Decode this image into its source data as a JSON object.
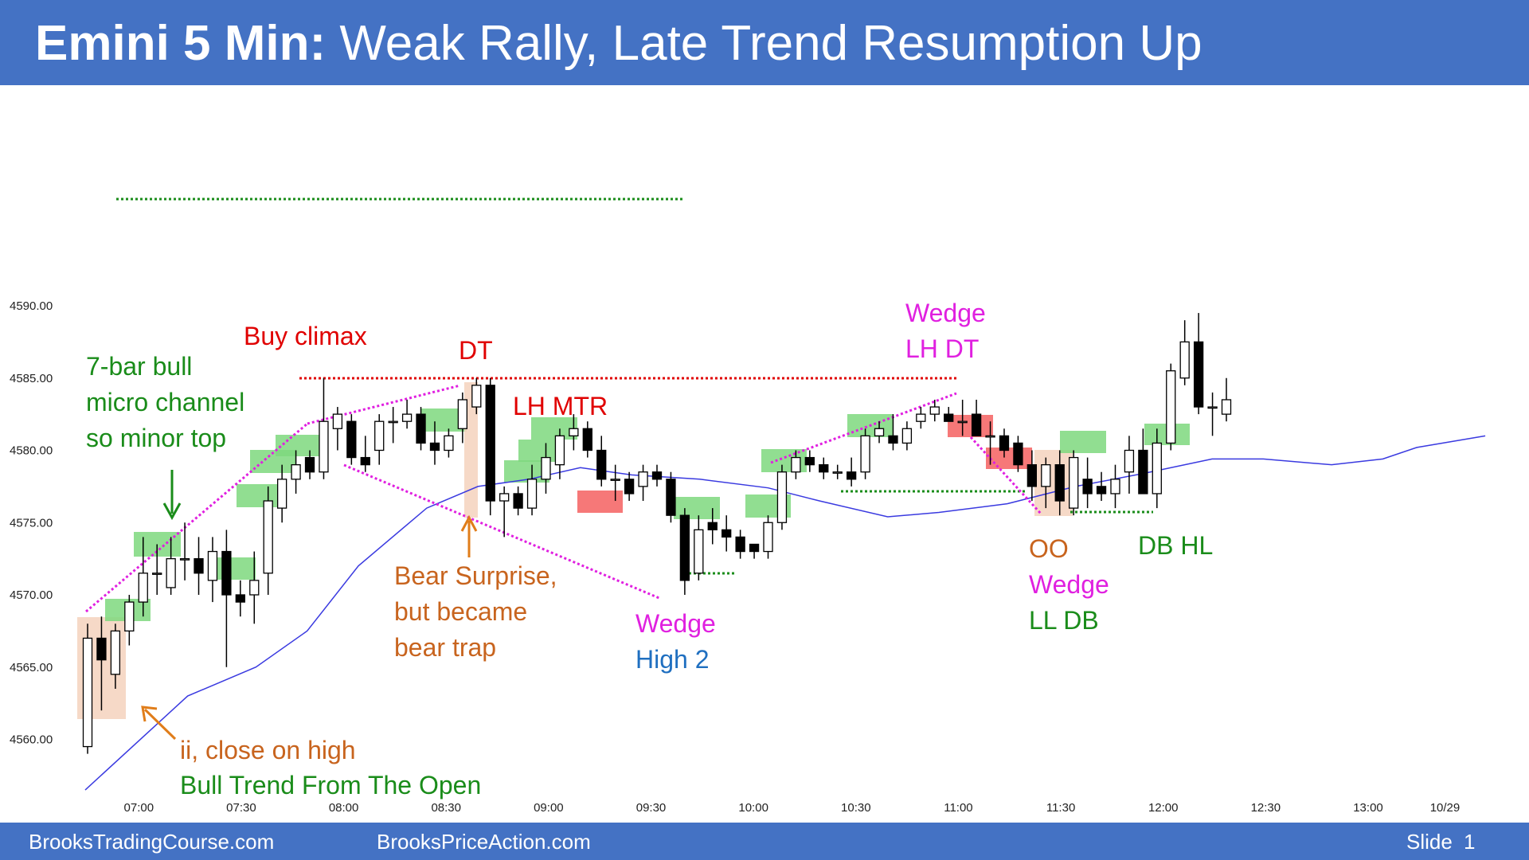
{
  "title": {
    "bold": "Emini 5 Min:",
    "rest": "Weak Rally, Late Trend Resumption Up"
  },
  "footer": {
    "left": "BrooksTradingCourse.com",
    "center": "BrooksPriceAction.com",
    "slide_label": "Slide",
    "slide_number": "1"
  },
  "colors": {
    "brand_blue": "#4472c4",
    "bull_highlight": "#7ed87e",
    "bear_highlight": "#f46060",
    "outside_highlight": "#f5d2bd",
    "ema": "#3a3ae0",
    "trendline_magenta": "#e020e0",
    "resistance_red": "#e00000",
    "support_green": "#1a8c1a"
  },
  "annotations": {
    "micro_channel": [
      "7-bar bull",
      "micro channel",
      "so minor top"
    ],
    "buy_climax": "Buy climax",
    "dt": "DT",
    "lh_mtr": "LH MTR",
    "bear_surprise": [
      "Bear Surprise,",
      "but became",
      "bear trap"
    ],
    "wedge_high2": [
      "Wedge",
      "High 2"
    ],
    "wedge_lh_dt": [
      "Wedge",
      "LH DT"
    ],
    "oo_wedge": [
      "OO",
      "Wedge",
      "LL DB"
    ],
    "db_hl": "DB HL",
    "ii_close": "ii, close on high",
    "bull_trend": "Bull Trend From The Open"
  },
  "chart_data": {
    "type": "candlestick",
    "y_axis": {
      "min": 4555,
      "max": 4592,
      "ticks": [
        4560.0,
        4565.0,
        4570.0,
        4575.0,
        4580.0,
        4585.0,
        4590.0
      ],
      "tick_labels": [
        "4560.00",
        "4565.00",
        "4570.00",
        "4575.00",
        "4580.00",
        "4585.00",
        "4590.00"
      ]
    },
    "x_axis": {
      "tick_bars": [
        3,
        9,
        15,
        21,
        27,
        33,
        39,
        45,
        51,
        57,
        63,
        69,
        75
      ],
      "tick_labels": [
        "07:00",
        "07:30",
        "08:00",
        "08:30",
        "09:00",
        "09:30",
        "10:00",
        "10:30",
        "11:00",
        "11:30",
        "12:00",
        "12:30",
        "13:00"
      ],
      "end_label": "10/29"
    },
    "bar_count": 80,
    "candles": [
      {
        "o": 4559.5,
        "h": 4568.0,
        "l": 4559.0,
        "c": 4567.0
      },
      {
        "o": 4567.0,
        "h": 4568.5,
        "l": 4562.0,
        "c": 4565.5
      },
      {
        "o": 4564.5,
        "h": 4568.0,
        "l": 4563.5,
        "c": 4567.5
      },
      {
        "o": 4567.5,
        "h": 4570.0,
        "l": 4566.5,
        "c": 4569.5
      },
      {
        "o": 4569.5,
        "h": 4574.0,
        "l": 4568.5,
        "c": 4571.5
      },
      {
        "o": 4571.5,
        "h": 4573.5,
        "l": 4570.0,
        "c": 4571.5
      },
      {
        "o": 4570.5,
        "h": 4574.0,
        "l": 4570.0,
        "c": 4572.5
      },
      {
        "o": 4572.5,
        "h": 4575.0,
        "l": 4571.0,
        "c": 4572.5
      },
      {
        "o": 4572.5,
        "h": 4574.0,
        "l": 4570.0,
        "c": 4571.5
      },
      {
        "o": 4571.0,
        "h": 4574.0,
        "l": 4569.5,
        "c": 4573.0
      },
      {
        "o": 4573.0,
        "h": 4574.5,
        "l": 4565.0,
        "c": 4570.0
      },
      {
        "o": 4570.0,
        "h": 4571.0,
        "l": 4568.5,
        "c": 4569.5
      },
      {
        "o": 4570.0,
        "h": 4573.0,
        "l": 4568.0,
        "c": 4571.0
      },
      {
        "o": 4571.5,
        "h": 4577.5,
        "l": 4570.0,
        "c": 4576.5
      },
      {
        "o": 4576.0,
        "h": 4579.0,
        "l": 4575.0,
        "c": 4578.0
      },
      {
        "o": 4578.0,
        "h": 4580.0,
        "l": 4577.0,
        "c": 4579.0
      },
      {
        "o": 4579.5,
        "h": 4580.0,
        "l": 4578.0,
        "c": 4578.5
      },
      {
        "o": 4578.5,
        "h": 4585.0,
        "l": 4578.0,
        "c": 4582.0
      },
      {
        "o": 4581.5,
        "h": 4583.0,
        "l": 4580.0,
        "c": 4582.5
      },
      {
        "o": 4582.0,
        "h": 4582.5,
        "l": 4579.0,
        "c": 4579.5
      },
      {
        "o": 4579.5,
        "h": 4581.0,
        "l": 4578.5,
        "c": 4579.0
      },
      {
        "o": 4580.0,
        "h": 4582.5,
        "l": 4579.0,
        "c": 4582.0
      },
      {
        "o": 4582.0,
        "h": 4583.0,
        "l": 4580.5,
        "c": 4582.0
      },
      {
        "o": 4582.0,
        "h": 4583.5,
        "l": 4581.5,
        "c": 4582.5
      },
      {
        "o": 4582.5,
        "h": 4583.0,
        "l": 4580.0,
        "c": 4580.5
      },
      {
        "o": 4580.5,
        "h": 4582.0,
        "l": 4579.0,
        "c": 4580.0
      },
      {
        "o": 4580.0,
        "h": 4581.5,
        "l": 4579.5,
        "c": 4581.0
      },
      {
        "o": 4581.5,
        "h": 4584.0,
        "l": 4580.5,
        "c": 4583.5
      },
      {
        "o": 4583.0,
        "h": 4585.0,
        "l": 4582.5,
        "c": 4584.5
      },
      {
        "o": 4584.5,
        "h": 4585.0,
        "l": 4575.5,
        "c": 4576.5
      },
      {
        "o": 4576.5,
        "h": 4577.5,
        "l": 4574.0,
        "c": 4577.0
      },
      {
        "o": 4577.0,
        "h": 4577.5,
        "l": 4575.5,
        "c": 4576.0
      },
      {
        "o": 4576.0,
        "h": 4579.0,
        "l": 4575.5,
        "c": 4578.0
      },
      {
        "o": 4578.0,
        "h": 4580.5,
        "l": 4577.0,
        "c": 4579.5
      },
      {
        "o": 4579.0,
        "h": 4581.5,
        "l": 4578.0,
        "c": 4581.0
      },
      {
        "o": 4581.0,
        "h": 4582.5,
        "l": 4580.0,
        "c": 4581.5
      },
      {
        "o": 4581.5,
        "h": 4582.0,
        "l": 4579.5,
        "c": 4580.0
      },
      {
        "o": 4580.0,
        "h": 4581.0,
        "l": 4577.5,
        "c": 4578.0
      },
      {
        "o": 4578.0,
        "h": 4579.0,
        "l": 4576.5,
        "c": 4578.0
      },
      {
        "o": 4578.0,
        "h": 4578.5,
        "l": 4576.5,
        "c": 4577.0
      },
      {
        "o": 4577.5,
        "h": 4579.0,
        "l": 4576.5,
        "c": 4578.5
      },
      {
        "o": 4578.5,
        "h": 4579.0,
        "l": 4577.5,
        "c": 4578.0
      },
      {
        "o": 4578.0,
        "h": 4578.5,
        "l": 4575.0,
        "c": 4575.5
      },
      {
        "o": 4575.5,
        "h": 4576.0,
        "l": 4570.0,
        "c": 4571.0
      },
      {
        "o": 4571.5,
        "h": 4575.5,
        "l": 4571.0,
        "c": 4574.5
      },
      {
        "o": 4575.0,
        "h": 4576.0,
        "l": 4573.5,
        "c": 4574.5
      },
      {
        "o": 4574.5,
        "h": 4575.5,
        "l": 4573.0,
        "c": 4574.0
      },
      {
        "o": 4574.0,
        "h": 4574.5,
        "l": 4572.5,
        "c": 4573.0
      },
      {
        "o": 4573.5,
        "h": 4573.5,
        "l": 4572.5,
        "c": 4573.0
      },
      {
        "o": 4573.0,
        "h": 4575.5,
        "l": 4572.5,
        "c": 4575.0
      },
      {
        "o": 4575.0,
        "h": 4579.0,
        "l": 4574.5,
        "c": 4578.5
      },
      {
        "o": 4578.5,
        "h": 4580.0,
        "l": 4578.0,
        "c": 4579.5
      },
      {
        "o": 4579.5,
        "h": 4580.0,
        "l": 4578.5,
        "c": 4579.0
      },
      {
        "o": 4579.0,
        "h": 4579.5,
        "l": 4578.0,
        "c": 4578.5
      },
      {
        "o": 4578.5,
        "h": 4579.0,
        "l": 4578.0,
        "c": 4578.5
      },
      {
        "o": 4578.5,
        "h": 4579.5,
        "l": 4577.5,
        "c": 4578.0
      },
      {
        "o": 4578.5,
        "h": 4581.5,
        "l": 4578.0,
        "c": 4581.0
      },
      {
        "o": 4581.0,
        "h": 4582.0,
        "l": 4580.5,
        "c": 4581.5
      },
      {
        "o": 4581.0,
        "h": 4582.5,
        "l": 4580.0,
        "c": 4580.5
      },
      {
        "o": 4580.5,
        "h": 4582.0,
        "l": 4580.0,
        "c": 4581.5
      },
      {
        "o": 4582.0,
        "h": 4583.0,
        "l": 4581.5,
        "c": 4582.5
      },
      {
        "o": 4582.5,
        "h": 4583.5,
        "l": 4582.0,
        "c": 4583.0
      },
      {
        "o": 4582.5,
        "h": 4583.0,
        "l": 4582.0,
        "c": 4582.0
      },
      {
        "o": 4582.0,
        "h": 4583.5,
        "l": 4581.0,
        "c": 4582.0
      },
      {
        "o": 4582.5,
        "h": 4583.5,
        "l": 4581.0,
        "c": 4581.0
      },
      {
        "o": 4581.0,
        "h": 4582.0,
        "l": 4579.0,
        "c": 4581.0
      },
      {
        "o": 4581.0,
        "h": 4581.5,
        "l": 4579.5,
        "c": 4580.0
      },
      {
        "o": 4580.5,
        "h": 4581.0,
        "l": 4578.5,
        "c": 4579.0
      },
      {
        "o": 4579.0,
        "h": 4580.0,
        "l": 4576.5,
        "c": 4577.5
      },
      {
        "o": 4577.5,
        "h": 4579.5,
        "l": 4576.0,
        "c": 4579.0
      },
      {
        "o": 4579.0,
        "h": 4580.0,
        "l": 4575.5,
        "c": 4576.5
      },
      {
        "o": 4576.0,
        "h": 4580.0,
        "l": 4575.5,
        "c": 4579.5
      },
      {
        "o": 4578.0,
        "h": 4579.5,
        "l": 4576.0,
        "c": 4577.0
      },
      {
        "o": 4577.5,
        "h": 4578.5,
        "l": 4576.5,
        "c": 4577.0
      },
      {
        "o": 4577.0,
        "h": 4579.0,
        "l": 4576.0,
        "c": 4578.0
      },
      {
        "o": 4578.5,
        "h": 4581.0,
        "l": 4577.0,
        "c": 4580.0
      },
      {
        "o": 4580.0,
        "h": 4581.5,
        "l": 4577.0,
        "c": 4577.0
      },
      {
        "o": 4577.0,
        "h": 4581.5,
        "l": 4576.0,
        "c": 4580.5
      },
      {
        "o": 4580.5,
        "h": 4586.0,
        "l": 4580.0,
        "c": 4585.5
      },
      {
        "o": 4585.0,
        "h": 4589.0,
        "l": 4584.5,
        "c": 4587.5
      }
    ],
    "tail_candles": [
      {
        "o": 4587.5,
        "h": 4589.5,
        "l": 4582.5,
        "c": 4583.0
      },
      {
        "o": 4583.0,
        "h": 4584.0,
        "l": 4581.0,
        "c": 4583.0
      },
      {
        "o": 4582.5,
        "h": 4585.0,
        "l": 4582.0,
        "c": 4583.5
      }
    ],
    "ema": [
      [
        0,
        4556.5
      ],
      [
        6,
        4563.0
      ],
      [
        10,
        4565.0
      ],
      [
        13,
        4567.5
      ],
      [
        16,
        4572.0
      ],
      [
        20,
        4576.0
      ],
      [
        23,
        4577.5
      ],
      [
        26,
        4578.0
      ],
      [
        29,
        4578.8
      ],
      [
        32,
        4578.3
      ],
      [
        36,
        4578.0
      ],
      [
        40,
        4577.4
      ],
      [
        43,
        4576.5
      ],
      [
        47,
        4575.4
      ],
      [
        50,
        4575.7
      ],
      [
        54,
        4576.3
      ],
      [
        58,
        4577.5
      ],
      [
        62,
        4578.4
      ],
      [
        66,
        4579.4
      ],
      [
        69,
        4579.4
      ],
      [
        73,
        4579.0
      ],
      [
        76,
        4579.4
      ],
      [
        78,
        4580.2
      ],
      [
        80,
        4580.6
      ],
      [
        82,
        4581.0
      ]
    ]
  }
}
